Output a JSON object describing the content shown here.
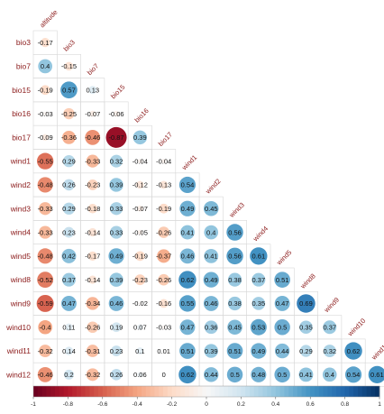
{
  "chart_data": {
    "type": "heatmap",
    "subtype": "correlation-lower-triangle",
    "row_labels": [
      "bio3",
      "bio7",
      "bio15",
      "bio16",
      "bio17",
      "wind1",
      "wind2",
      "wind3",
      "wind4",
      "wind5",
      "wind8",
      "wind9",
      "wind10",
      "wind11",
      "wind12"
    ],
    "col_labels": [
      "altitude",
      "bio3",
      "bio7",
      "bio15",
      "bio16",
      "bio17",
      "wind1",
      "wind2",
      "wind3",
      "wind4",
      "wind5",
      "wind8",
      "wind9",
      "wind10",
      "wind11"
    ],
    "values": [
      [
        "-0.17"
      ],
      [
        "0.4",
        "-0.15"
      ],
      [
        "-0.19",
        "0.57",
        "0.13"
      ],
      [
        "-0.03",
        "-0.25",
        "-0.07",
        "-0.06"
      ],
      [
        "-0.09",
        "-0.36",
        "-0.46",
        "-0.87",
        "0.39"
      ],
      [
        "-0.55",
        "0.29",
        "-0.33",
        "0.32",
        "-0.04",
        "-0.04"
      ],
      [
        "-0.48",
        "0.26",
        "-0.23",
        "0.39",
        "-0.12",
        "-0.13",
        "0.54"
      ],
      [
        "-0.33",
        "0.29",
        "-0.18",
        "0.33",
        "-0.07",
        "-0.19",
        "0.49",
        "0.45"
      ],
      [
        "-0.33",
        "0.23",
        "-0.14",
        "0.33",
        "-0.05",
        "-0.26",
        "0.41",
        "0.4",
        "0.56"
      ],
      [
        "-0.48",
        "0.42",
        "-0.17",
        "0.49",
        "-0.19",
        "-0.37",
        "0.46",
        "0.41",
        "0.56",
        "0.61"
      ],
      [
        "-0.52",
        "0.37",
        "-0.14",
        "0.39",
        "-0.23",
        "-0.26",
        "0.62",
        "0.49",
        "0.38",
        "0.37",
        "0.51"
      ],
      [
        "-0.59",
        "0.47",
        "-0.34",
        "0.46",
        "-0.02",
        "-0.16",
        "0.55",
        "0.46",
        "0.38",
        "0.35",
        "0.47",
        "0.69"
      ],
      [
        "-0.4",
        "0.11",
        "-0.26",
        "0.19",
        "0.07",
        "-0.03",
        "0.47",
        "0.36",
        "0.45",
        "0.53",
        "0.5",
        "0.35",
        "0.37"
      ],
      [
        "-0.32",
        "0.14",
        "-0.31",
        "0.23",
        "0.1",
        "0.01",
        "0.51",
        "0.39",
        "0.51",
        "0.49",
        "0.44",
        "0.29",
        "0.32",
        "0.62"
      ],
      [
        "-0.46",
        "0.2",
        "-0.32",
        "0.26",
        "0.06",
        "0",
        "0.62",
        "0.44",
        "0.5",
        "0.48",
        "0.5",
        "0.41",
        "0.4",
        "0.54",
        "0.61"
      ]
    ],
    "colorbar": {
      "ticks": [
        "-1",
        "-0.8",
        "-0.6",
        "-0.4",
        "-0.2",
        "0",
        "0.2",
        "0.4",
        "0.6",
        "0.8",
        "1"
      ],
      "range": [
        -1,
        1
      ],
      "colors": {
        "neg": "#67001f",
        "mid": "#f7f7f7",
        "pos": "#053061"
      }
    }
  }
}
